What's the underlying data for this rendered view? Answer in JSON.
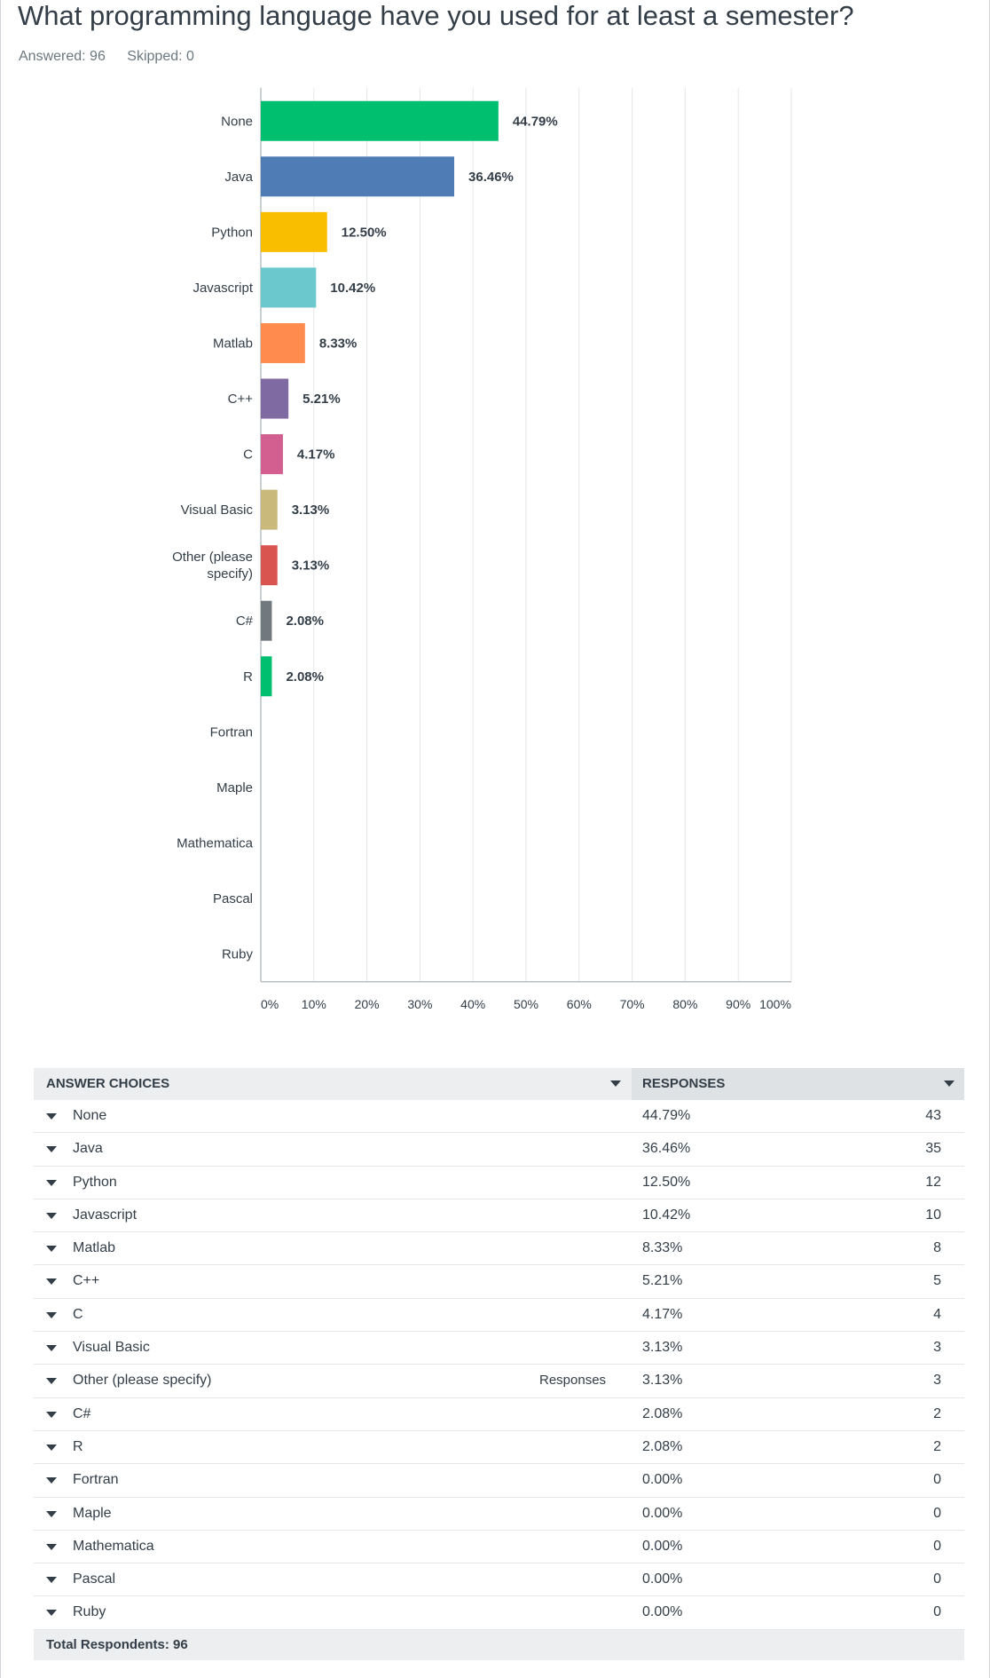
{
  "question": {
    "title": "What programming language have you used for at least a semester?",
    "answered": "Answered: 96",
    "skipped": "Skipped: 0"
  },
  "chart_data": {
    "type": "bar",
    "orientation": "horizontal",
    "categories": [
      "None",
      "Java",
      "Python",
      "Javascript",
      "Matlab",
      "C++",
      "C",
      "Visual Basic",
      "Other (please specify)",
      "C#",
      "R",
      "Fortran",
      "Maple",
      "Mathematica",
      "Pascal",
      "Ruby"
    ],
    "category_lines": [
      [
        "None"
      ],
      [
        "Java"
      ],
      [
        "Python"
      ],
      [
        "Javascript"
      ],
      [
        "Matlab"
      ],
      [
        "C++"
      ],
      [
        "C"
      ],
      [
        "Visual Basic"
      ],
      [
        "Other (please",
        "specify)"
      ],
      [
        "C#"
      ],
      [
        "R"
      ],
      [
        "Fortran"
      ],
      [
        "Maple"
      ],
      [
        "Mathematica"
      ],
      [
        "Pascal"
      ],
      [
        "Ruby"
      ]
    ],
    "values": [
      44.79,
      36.46,
      12.5,
      10.42,
      8.33,
      5.21,
      4.17,
      3.13,
      3.13,
      2.08,
      2.08,
      0,
      0,
      0,
      0,
      0
    ],
    "value_labels": [
      "44.79%",
      "36.46%",
      "12.50%",
      "10.42%",
      "8.33%",
      "5.21%",
      "4.17%",
      "3.13%",
      "3.13%",
      "2.08%",
      "2.08%",
      "",
      "",
      "",
      "",
      ""
    ],
    "colors": [
      "#00bf6f",
      "#507cb6",
      "#f9be00",
      "#6bc8cd",
      "#ff8b4f",
      "#7f6aa1",
      "#d25f90",
      "#c9b97b",
      "#d9534f",
      "#71797e",
      "#00bf6f",
      "#00bf6f",
      "#00bf6f",
      "#00bf6f",
      "#00bf6f",
      "#00bf6f"
    ],
    "xlim": [
      0,
      100
    ],
    "xticks": [
      "0%",
      "10%",
      "20%",
      "30%",
      "40%",
      "50%",
      "60%",
      "70%",
      "80%",
      "90%",
      "100%"
    ],
    "grid": true
  },
  "table": {
    "col_choices": "ANSWER CHOICES",
    "col_responses": "RESPONSES",
    "responses_link": "Responses",
    "rows": [
      {
        "label": "None",
        "pct": "44.79%",
        "count": "43"
      },
      {
        "label": "Java",
        "pct": "36.46%",
        "count": "35"
      },
      {
        "label": "Python",
        "pct": "12.50%",
        "count": "12"
      },
      {
        "label": "Javascript",
        "pct": "10.42%",
        "count": "10"
      },
      {
        "label": "Matlab",
        "pct": "8.33%",
        "count": "8"
      },
      {
        "label": "C++",
        "pct": "5.21%",
        "count": "5"
      },
      {
        "label": "C",
        "pct": "4.17%",
        "count": "4"
      },
      {
        "label": "Visual Basic",
        "pct": "3.13%",
        "count": "3"
      },
      {
        "label": "Other (please specify)",
        "pct": "3.13%",
        "count": "3",
        "link": true
      },
      {
        "label": "C#",
        "pct": "2.08%",
        "count": "2"
      },
      {
        "label": "R",
        "pct": "2.08%",
        "count": "2"
      },
      {
        "label": "Fortran",
        "pct": "0.00%",
        "count": "0"
      },
      {
        "label": "Maple",
        "pct": "0.00%",
        "count": "0"
      },
      {
        "label": "Mathematica",
        "pct": "0.00%",
        "count": "0"
      },
      {
        "label": "Pascal",
        "pct": "0.00%",
        "count": "0"
      },
      {
        "label": "Ruby",
        "pct": "0.00%",
        "count": "0"
      }
    ],
    "total": "Total Respondents: 96"
  }
}
